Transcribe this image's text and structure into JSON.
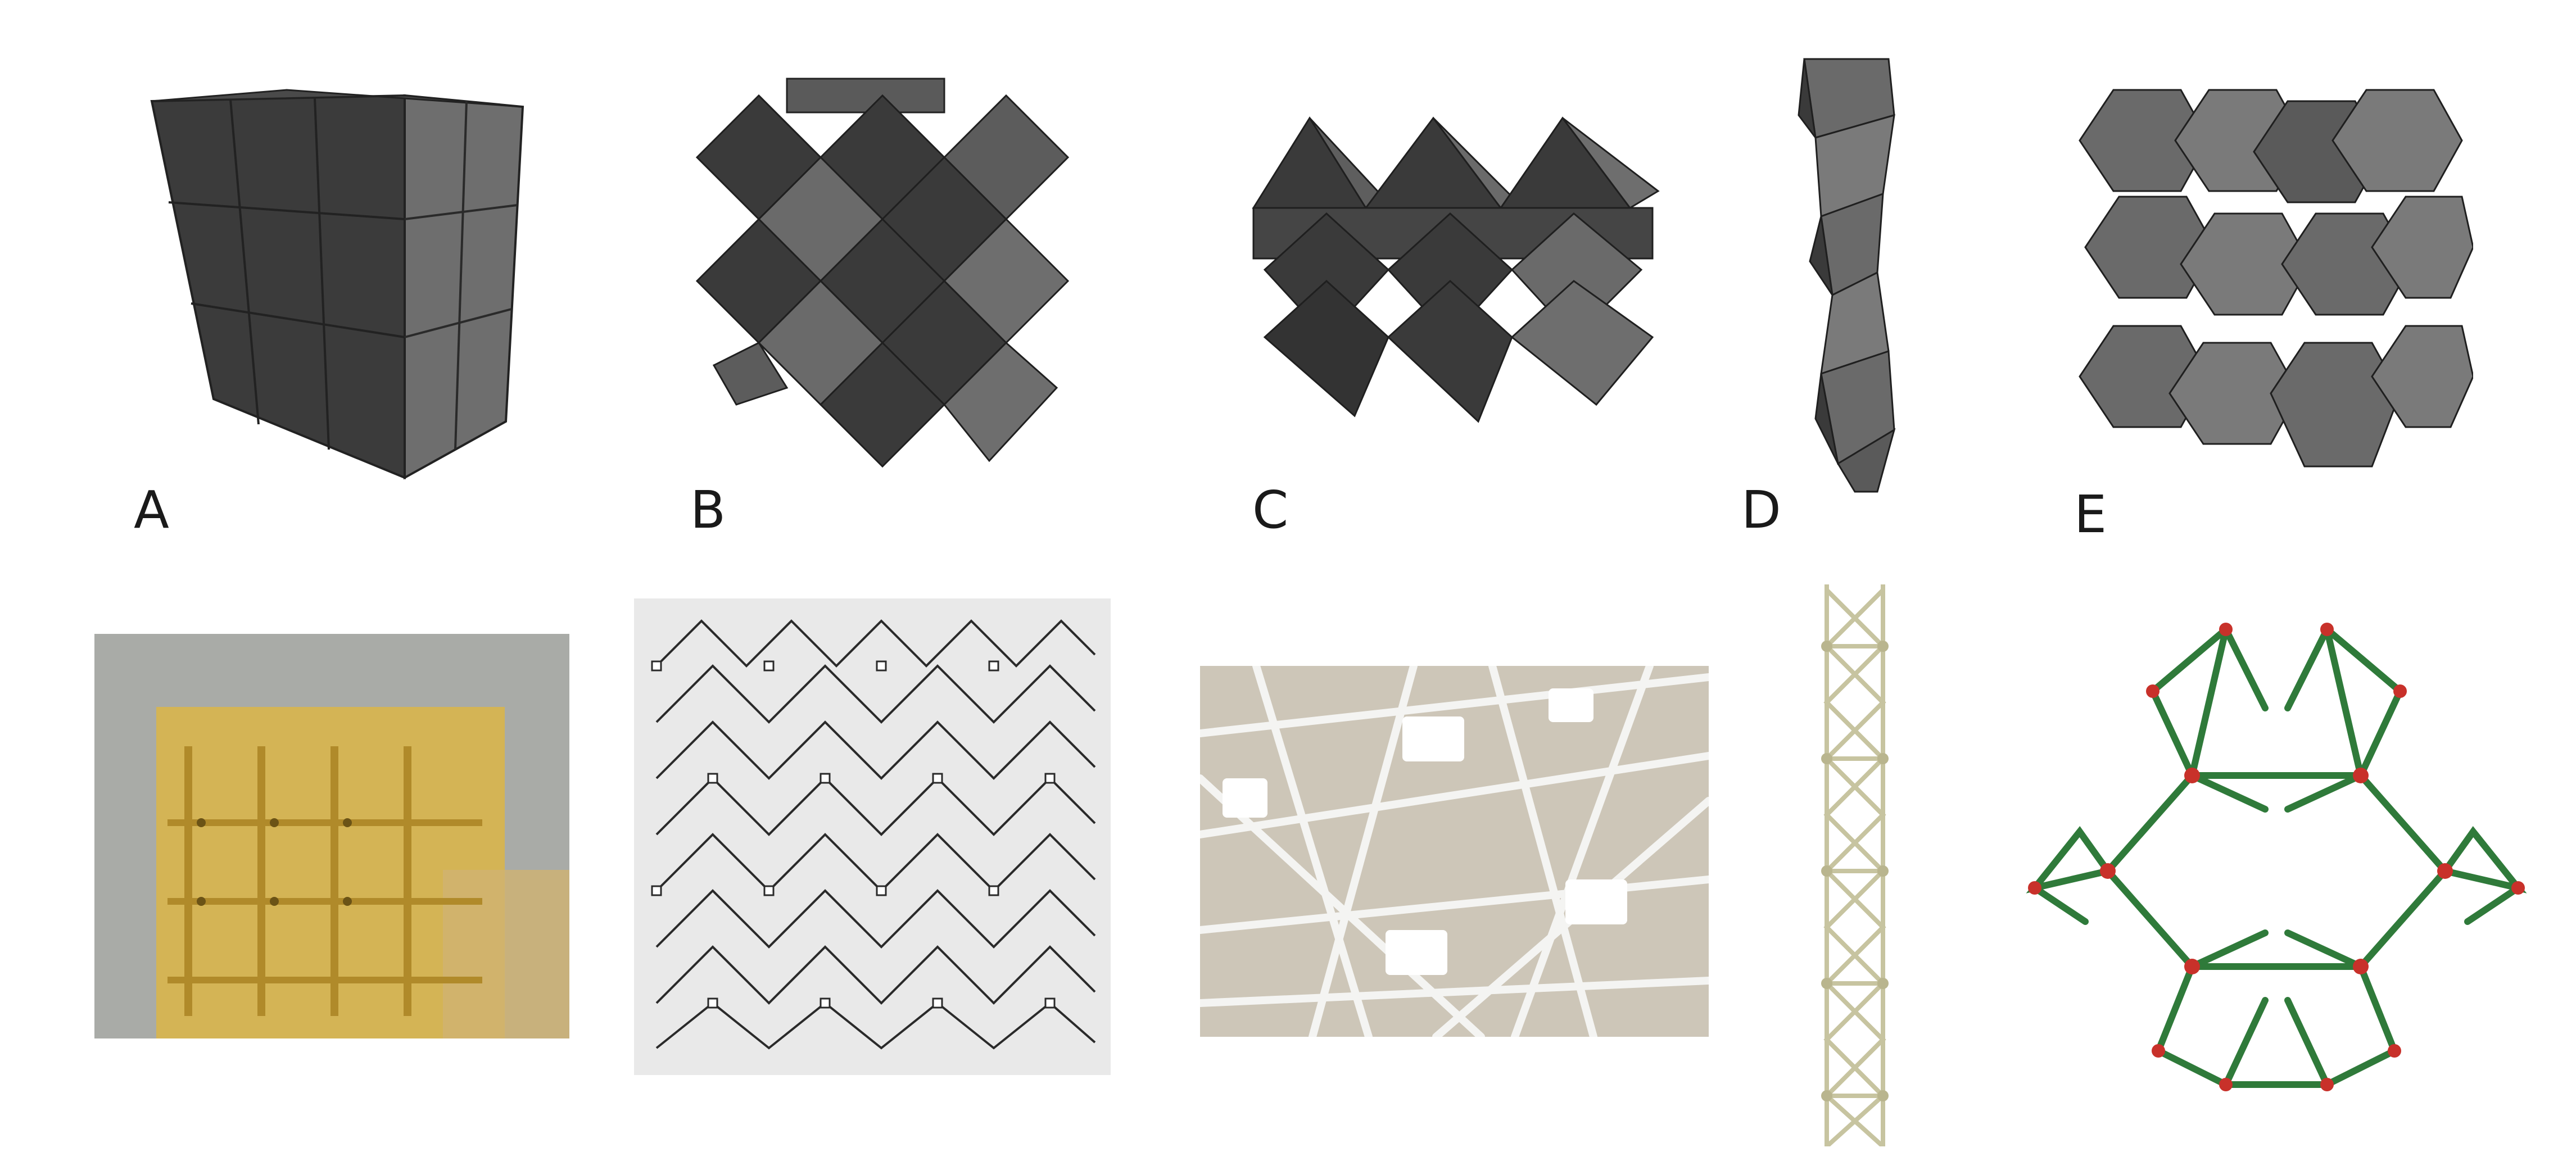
{
  "figure": {
    "panels": [
      {
        "label": "A",
        "model": "cube-cell-lattice",
        "photo": "yellow-printed-cube-blocks"
      },
      {
        "label": "B",
        "model": "octahedral-cell-lattice",
        "photo": "dark-wire-cubic-lattice"
      },
      {
        "label": "C",
        "model": "pyramid-cell-lattice",
        "photo": "white-strut-lattice-closeup"
      },
      {
        "label": "D",
        "model": "twisted-tetrahedral-column",
        "photo": "beige-strut-column"
      },
      {
        "label": "E",
        "model": "truncated-octahedron-lattice",
        "photo": "green-strut-hexagonal-lattice"
      }
    ],
    "colors": {
      "face_dark": "#3a3a3a",
      "face_mid": "#5c5c5c",
      "face_light": "#7a7a7a",
      "edge": "#1f1f1f",
      "photo_a_bg": "#a8aaa6",
      "photo_a_fg": "#d8b656",
      "photo_c_bg": "#c9c2b4",
      "photo_d_strut": "#c9c6a4",
      "photo_e_strut": "#2f7a3a",
      "photo_e_joint": "#c8312a"
    }
  }
}
